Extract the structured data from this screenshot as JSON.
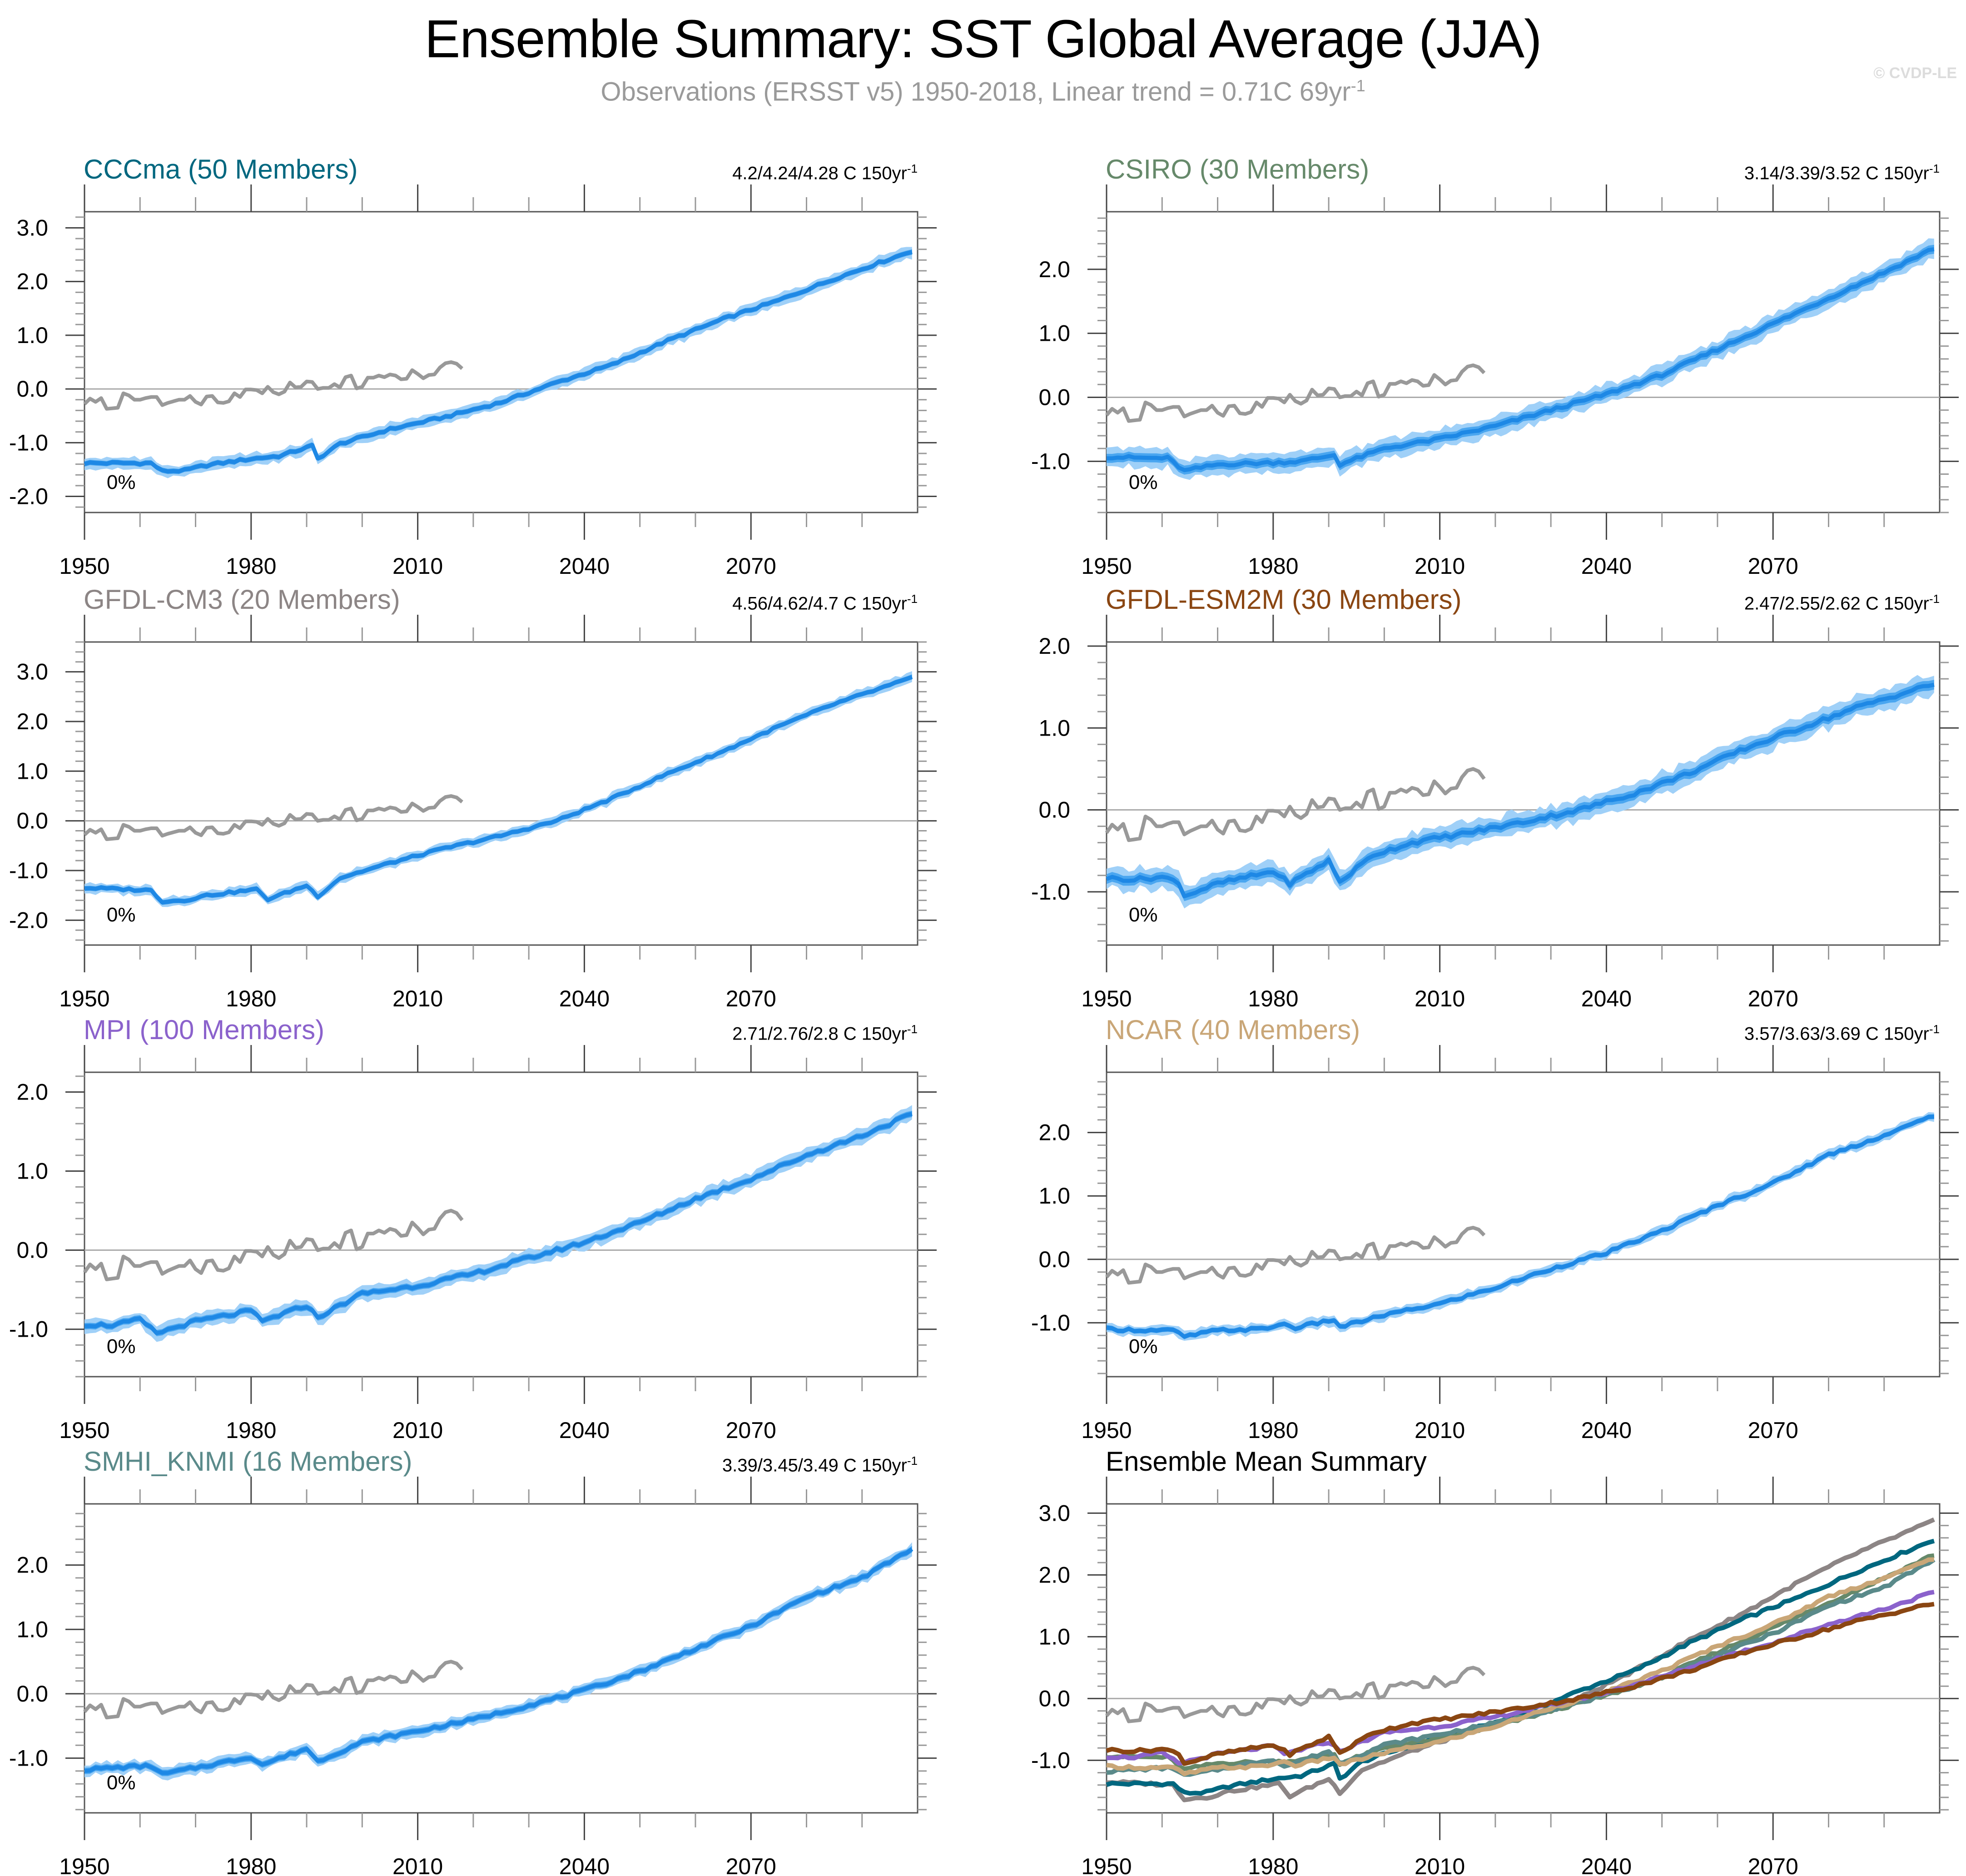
{
  "header": {
    "title": "Ensemble Summary: SST Global Average (JJA)",
    "subtitle_main": "Observations (ERSST v5) 1950-2018, Linear trend = 0.71C 69yr",
    "subtitle_sup": "-1",
    "watermark": "© CVDP-LE"
  },
  "chart_data": [
    {
      "type": "area",
      "title": "CCCma (50 Members)",
      "title_color": "#00677f",
      "trend_label": "4.2/4.24/4.28 C 150yr",
      "trend_sup": "-1",
      "percent_label": "0%",
      "xlim": [
        1950,
        2100
      ],
      "ylim": [
        -2.3,
        3.3
      ],
      "xticks": [
        1950,
        1980,
        2010,
        2040,
        2070
      ],
      "yticks": [
        -2.0,
        -1.0,
        0.0,
        1.0,
        2.0,
        3.0
      ],
      "ytick_labels": [
        "-2.0",
        "-1.0",
        "0.0",
        "1.0",
        "2.0",
        "3.0"
      ],
      "ensemble_mean_keypoints": [
        [
          1950,
          -1.38
        ],
        [
          1955,
          -1.38
        ],
        [
          1962,
          -1.38
        ],
        [
          1964,
          -1.53
        ],
        [
          1968,
          -1.52
        ],
        [
          1972,
          -1.42
        ],
        [
          1980,
          -1.3
        ],
        [
          1985,
          -1.25
        ],
        [
          1991,
          -1.06
        ],
        [
          1992,
          -1.3
        ],
        [
          1996,
          -1.02
        ],
        [
          2005,
          -0.75
        ],
        [
          2015,
          -0.52
        ],
        [
          2025,
          -0.25
        ],
        [
          2035,
          0.12
        ],
        [
          2045,
          0.45
        ],
        [
          2055,
          0.9
        ],
        [
          2065,
          1.3
        ],
        [
          2075,
          1.65
        ],
        [
          2085,
          2.05
        ],
        [
          2099,
          2.57
        ]
      ],
      "spread_inner": 0.05,
      "spread_outer": 0.11
    },
    {
      "type": "area",
      "title": "CSIRO (30 Members)",
      "title_color": "#66896a",
      "trend_label": "3.14/3.39/3.52 C 150yr",
      "trend_sup": "-1",
      "percent_label": "0%",
      "xlim": [
        1950,
        2100
      ],
      "ylim": [
        -1.8,
        2.9
      ],
      "xticks": [
        1950,
        1980,
        2010,
        2040,
        2070
      ],
      "yticks": [
        -1.0,
        0.0,
        1.0,
        2.0
      ],
      "ytick_labels": [
        "-1.0",
        "0.0",
        "1.0",
        "2.0"
      ],
      "ensemble_mean_keypoints": [
        [
          1950,
          -0.93
        ],
        [
          1958,
          -0.95
        ],
        [
          1961,
          -0.95
        ],
        [
          1964,
          -1.15
        ],
        [
          1970,
          -1.05
        ],
        [
          1980,
          -1.02
        ],
        [
          1985,
          -1.0
        ],
        [
          1991,
          -0.9
        ],
        [
          1992,
          -1.05
        ],
        [
          2000,
          -0.8
        ],
        [
          2010,
          -0.65
        ],
        [
          2020,
          -0.45
        ],
        [
          2030,
          -0.2
        ],
        [
          2040,
          0.05
        ],
        [
          2050,
          0.35
        ],
        [
          2060,
          0.75
        ],
        [
          2070,
          1.15
        ],
        [
          2080,
          1.55
        ],
        [
          2090,
          1.95
        ],
        [
          2099,
          2.33
        ]
      ],
      "spread_inner": 0.07,
      "spread_outer": 0.15
    },
    {
      "type": "area",
      "title": "GFDL-CM3 (20 Members)",
      "title_color": "#8c8585",
      "trend_label": "4.56/4.62/4.7 C 150yr",
      "trend_sup": "-1",
      "percent_label": "0%",
      "xlim": [
        1950,
        2100
      ],
      "ylim": [
        -2.5,
        3.6
      ],
      "xticks": [
        1950,
        1980,
        2010,
        2040,
        2070
      ],
      "yticks": [
        -2.0,
        -1.0,
        0.0,
        1.0,
        2.0,
        3.0
      ],
      "ytick_labels": [
        "-2.0",
        "-1.0",
        "0.0",
        "1.0",
        "2.0",
        "3.0"
      ],
      "ensemble_mean_keypoints": [
        [
          1950,
          -1.35
        ],
        [
          1958,
          -1.38
        ],
        [
          1962,
          -1.4
        ],
        [
          1964,
          -1.62
        ],
        [
          1968,
          -1.6
        ],
        [
          1972,
          -1.5
        ],
        [
          1981,
          -1.38
        ],
        [
          1983,
          -1.58
        ],
        [
          1990,
          -1.3
        ],
        [
          1992,
          -1.52
        ],
        [
          1996,
          -1.15
        ],
        [
          2005,
          -0.85
        ],
        [
          2015,
          -0.55
        ],
        [
          2025,
          -0.3
        ],
        [
          2035,
          0.0
        ],
        [
          2045,
          0.45
        ],
        [
          2055,
          0.95
        ],
        [
          2065,
          1.4
        ],
        [
          2075,
          1.9
        ],
        [
          2085,
          2.35
        ],
        [
          2099,
          2.88
        ]
      ],
      "spread_inner": 0.05,
      "spread_outer": 0.1
    },
    {
      "type": "area",
      "title": "GFDL-ESM2M (30 Members)",
      "title_color": "#8a4612",
      "trend_label": "2.47/2.55/2.62 C 150yr",
      "trend_sup": "-1",
      "percent_label": "0%",
      "xlim": [
        1950,
        2100
      ],
      "ylim": [
        -1.65,
        2.05
      ],
      "xticks": [
        1950,
        1980,
        2010,
        2040,
        2070
      ],
      "yticks": [
        -1.0,
        0.0,
        1.0,
        2.0
      ],
      "ytick_labels": [
        "-1.0",
        "0.0",
        "1.0",
        "2.0"
      ],
      "ensemble_mean_keypoints": [
        [
          1950,
          -0.83
        ],
        [
          1955,
          -0.85
        ],
        [
          1960,
          -0.82
        ],
        [
          1963,
          -0.88
        ],
        [
          1964,
          -1.05
        ],
        [
          1970,
          -0.9
        ],
        [
          1980,
          -0.75
        ],
        [
          1983,
          -0.9
        ],
        [
          1990,
          -0.62
        ],
        [
          1992,
          -0.88
        ],
        [
          1998,
          -0.55
        ],
        [
          2005,
          -0.4
        ],
        [
          2015,
          -0.28
        ],
        [
          2025,
          -0.15
        ],
        [
          2035,
          0.0
        ],
        [
          2045,
          0.2
        ],
        [
          2055,
          0.45
        ],
        [
          2065,
          0.75
        ],
        [
          2075,
          1.0
        ],
        [
          2085,
          1.25
        ],
        [
          2099,
          1.54
        ]
      ],
      "spread_inner": 0.06,
      "spread_outer": 0.13
    },
    {
      "type": "area",
      "title": "MPI (100 Members)",
      "title_color": "#8b62cc",
      "trend_label": "2.71/2.76/2.8 C 150yr",
      "trend_sup": "-1",
      "percent_label": "0%",
      "xlim": [
        1950,
        2100
      ],
      "ylim": [
        -1.6,
        2.25
      ],
      "xticks": [
        1950,
        1980,
        2010,
        2040,
        2070
      ],
      "yticks": [
        -1.0,
        0.0,
        1.0,
        2.0
      ],
      "ytick_labels": [
        "-1.0",
        "0.0",
        "1.0",
        "2.0"
      ],
      "ensemble_mean_keypoints": [
        [
          1950,
          -0.94
        ],
        [
          1955,
          -0.95
        ],
        [
          1960,
          -0.88
        ],
        [
          1963,
          -1.05
        ],
        [
          1970,
          -0.9
        ],
        [
          1980,
          -0.77
        ],
        [
          1982,
          -0.9
        ],
        [
          1990,
          -0.7
        ],
        [
          1992,
          -0.85
        ],
        [
          2000,
          -0.55
        ],
        [
          2010,
          -0.45
        ],
        [
          2020,
          -0.3
        ],
        [
          2030,
          -0.1
        ],
        [
          2040,
          0.1
        ],
        [
          2050,
          0.35
        ],
        [
          2060,
          0.65
        ],
        [
          2070,
          0.9
        ],
        [
          2080,
          1.2
        ],
        [
          2090,
          1.45
        ],
        [
          2099,
          1.72
        ]
      ],
      "spread_inner": 0.04,
      "spread_outer": 0.09
    },
    {
      "type": "area",
      "title": "NCAR (40 Members)",
      "title_color": "#c9a677",
      "trend_label": "3.57/3.63/3.69 C 150yr",
      "trend_sup": "-1",
      "percent_label": "0%",
      "xlim": [
        1950,
        2100
      ],
      "ylim": [
        -1.85,
        2.95
      ],
      "xticks": [
        1950,
        1980,
        2010,
        2040,
        2070
      ],
      "yticks": [
        -1.0,
        0.0,
        1.0,
        2.0
      ],
      "ytick_labels": [
        "-1.0",
        "0.0",
        "1.0",
        "2.0"
      ],
      "ensemble_mean_keypoints": [
        [
          1950,
          -1.1
        ],
        [
          1958,
          -1.12
        ],
        [
          1962,
          -1.12
        ],
        [
          1964,
          -1.22
        ],
        [
          1970,
          -1.12
        ],
        [
          1978,
          -1.1
        ],
        [
          1982,
          -1.02
        ],
        [
          1984,
          -1.08
        ],
        [
          1991,
          -0.95
        ],
        [
          1992,
          -1.07
        ],
        [
          2000,
          -0.88
        ],
        [
          2010,
          -0.7
        ],
        [
          2020,
          -0.45
        ],
        [
          2030,
          -0.15
        ],
        [
          2040,
          0.1
        ],
        [
          2050,
          0.45
        ],
        [
          2060,
          0.85
        ],
        [
          2070,
          1.2
        ],
        [
          2080,
          1.65
        ],
        [
          2090,
          1.95
        ],
        [
          2099,
          2.27
        ]
      ],
      "spread_inner": 0.04,
      "spread_outer": 0.08
    },
    {
      "type": "area",
      "title": "SMHI_KNMI (16 Members)",
      "title_color": "#5a8a8a",
      "trend_label": "3.39/3.45/3.49 C 150yr",
      "trend_sup": "-1",
      "percent_label": "0%",
      "xlim": [
        1950,
        2100
      ],
      "ylim": [
        -1.85,
        2.95
      ],
      "xticks": [
        1950,
        1980,
        2010,
        2040,
        2070
      ],
      "yticks": [
        -1.0,
        0.0,
        1.0,
        2.0
      ],
      "ytick_labels": [
        "-1.0",
        "0.0",
        "1.0",
        "2.0"
      ],
      "ensemble_mean_keypoints": [
        [
          1950,
          -1.18
        ],
        [
          1955,
          -1.15
        ],
        [
          1962,
          -1.12
        ],
        [
          1964,
          -1.25
        ],
        [
          1970,
          -1.15
        ],
        [
          1980,
          -0.98
        ],
        [
          1982,
          -1.1
        ],
        [
          1990,
          -0.85
        ],
        [
          1992,
          -1.05
        ],
        [
          2000,
          -0.75
        ],
        [
          2010,
          -0.58
        ],
        [
          2020,
          -0.4
        ],
        [
          2030,
          -0.18
        ],
        [
          2040,
          0.05
        ],
        [
          2050,
          0.35
        ],
        [
          2060,
          0.7
        ],
        [
          2070,
          1.05
        ],
        [
          2080,
          1.5
        ],
        [
          2090,
          1.8
        ],
        [
          2099,
          2.25
        ]
      ],
      "spread_inner": 0.05,
      "spread_outer": 0.09
    },
    {
      "type": "line",
      "title": "Ensemble Mean Summary",
      "title_color": "#000000",
      "xlim": [
        1950,
        2100
      ],
      "ylim": [
        -1.85,
        3.15
      ],
      "xticks": [
        1950,
        1980,
        2010,
        2040,
        2070
      ],
      "yticks": [
        -1.0,
        0.0,
        1.0,
        2.0,
        3.0
      ],
      "ytick_labels": [
        "-1.0",
        "0.0",
        "1.0",
        "2.0",
        "3.0"
      ],
      "series_from_panels": [
        2,
        0,
        1,
        6,
        5,
        4,
        3
      ],
      "series_names": [
        "GFDL-CM3",
        "CCCma",
        "CSIRO",
        "SMHI_KNMI",
        "NCAR",
        "MPI",
        "GFDL-ESM2M"
      ]
    }
  ],
  "observations": {
    "name": "Observations (ERSST v5)",
    "color": "#999999",
    "years": [
      1950,
      2018
    ],
    "values": [
      -0.28,
      -0.18,
      -0.24,
      -0.17,
      -0.37,
      -0.36,
      -0.35,
      -0.08,
      -0.12,
      -0.2,
      -0.2,
      -0.17,
      -0.15,
      -0.15,
      -0.3,
      -0.26,
      -0.23,
      -0.2,
      -0.2,
      -0.13,
      -0.24,
      -0.29,
      -0.14,
      -0.13,
      -0.25,
      -0.26,
      -0.23,
      -0.08,
      -0.15,
      -0.01,
      -0.01,
      -0.02,
      -0.08,
      0.04,
      -0.06,
      -0.1,
      -0.05,
      0.12,
      0.03,
      0.04,
      0.14,
      0.13,
      0.0,
      0.02,
      0.02,
      0.09,
      0.03,
      0.22,
      0.25,
      0.01,
      0.04,
      0.21,
      0.21,
      0.25,
      0.22,
      0.27,
      0.25,
      0.18,
      0.19,
      0.35,
      0.28,
      0.2,
      0.26,
      0.27,
      0.4,
      0.48,
      0.5,
      0.47,
      0.38
    ]
  },
  "colors": {
    "spread_outer": "#9fd0f8",
    "spread_inner": "#4aa6f0",
    "mean_line": "#1e88e5",
    "zero_line": "#aaaaaa",
    "axis": "#555555"
  }
}
